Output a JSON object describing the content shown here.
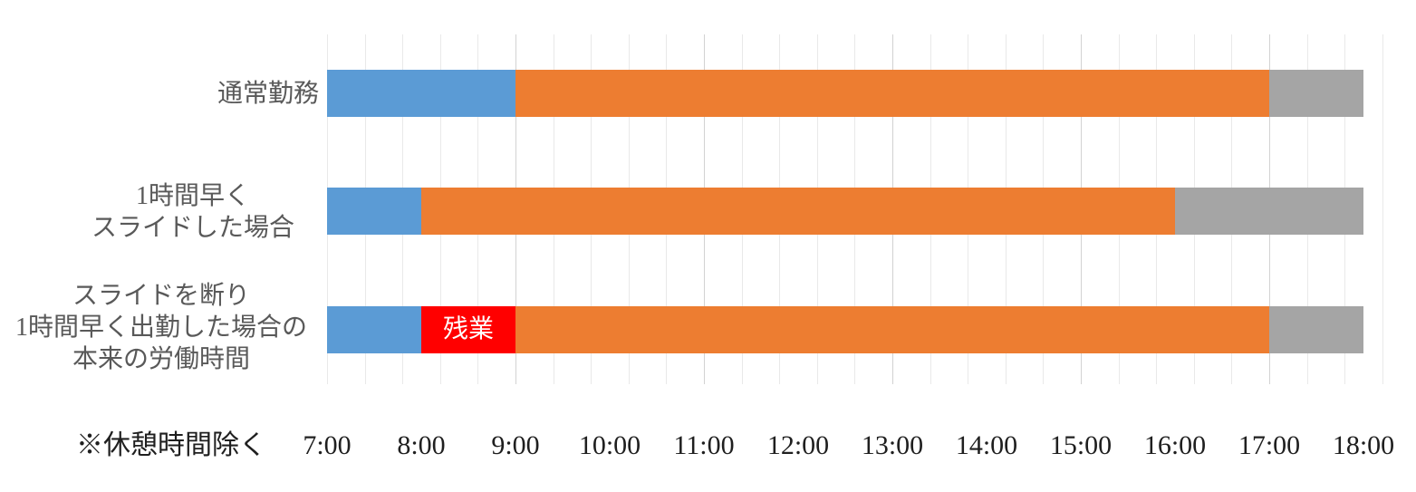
{
  "chart_data": {
    "type": "bar",
    "orientation": "horizontal_stacked_timeline",
    "title": "",
    "note": "※休憩時間除く",
    "x_axis": {
      "start": "7:00",
      "end": "18:00",
      "tick_labels": [
        "7:00",
        "8:00",
        "9:00",
        "10:00",
        "11:00",
        "12:00",
        "13:00",
        "14:00",
        "15:00",
        "16:00",
        "17:00",
        "18:00"
      ],
      "tick_interval_minutes": 60,
      "minor_gridline_minutes": 24,
      "major_gridline_times": [
        "9:00",
        "11:00",
        "13:00",
        "15:00",
        "17:00"
      ],
      "grid": true
    },
    "colors": {
      "blue": "#5B9BD5",
      "orange": "#ED7D31",
      "gray": "#A5A5A5",
      "red": "#FF0000"
    },
    "rows": [
      {
        "name": "normal-work",
        "label_lines": [
          "通常勤務"
        ],
        "segments": [
          {
            "start": "7:00",
            "end": "9:00",
            "color": "blue",
            "label": ""
          },
          {
            "start": "9:00",
            "end": "17:00",
            "color": "orange",
            "label": ""
          },
          {
            "start": "17:00",
            "end": "18:00",
            "color": "gray",
            "label": ""
          }
        ]
      },
      {
        "name": "slid-one-hour-earlier",
        "label_lines": [
          "1時間早く",
          "スライドした場合"
        ],
        "segments": [
          {
            "start": "7:00",
            "end": "8:00",
            "color": "blue",
            "label": ""
          },
          {
            "start": "8:00",
            "end": "16:00",
            "color": "orange",
            "label": ""
          },
          {
            "start": "16:00",
            "end": "18:00",
            "color": "gray",
            "label": ""
          }
        ]
      },
      {
        "name": "refused-slide-original-hours",
        "label_lines": [
          "スライドを断り",
          "1時間早く出勤した場合の",
          "本来の労働時間"
        ],
        "segments": [
          {
            "start": "7:00",
            "end": "8:00",
            "color": "blue",
            "label": ""
          },
          {
            "start": "8:00",
            "end": "9:00",
            "color": "red",
            "label": "残業"
          },
          {
            "start": "9:00",
            "end": "17:00",
            "color": "orange",
            "label": ""
          },
          {
            "start": "17:00",
            "end": "18:00",
            "color": "gray",
            "label": ""
          }
        ]
      }
    ]
  }
}
